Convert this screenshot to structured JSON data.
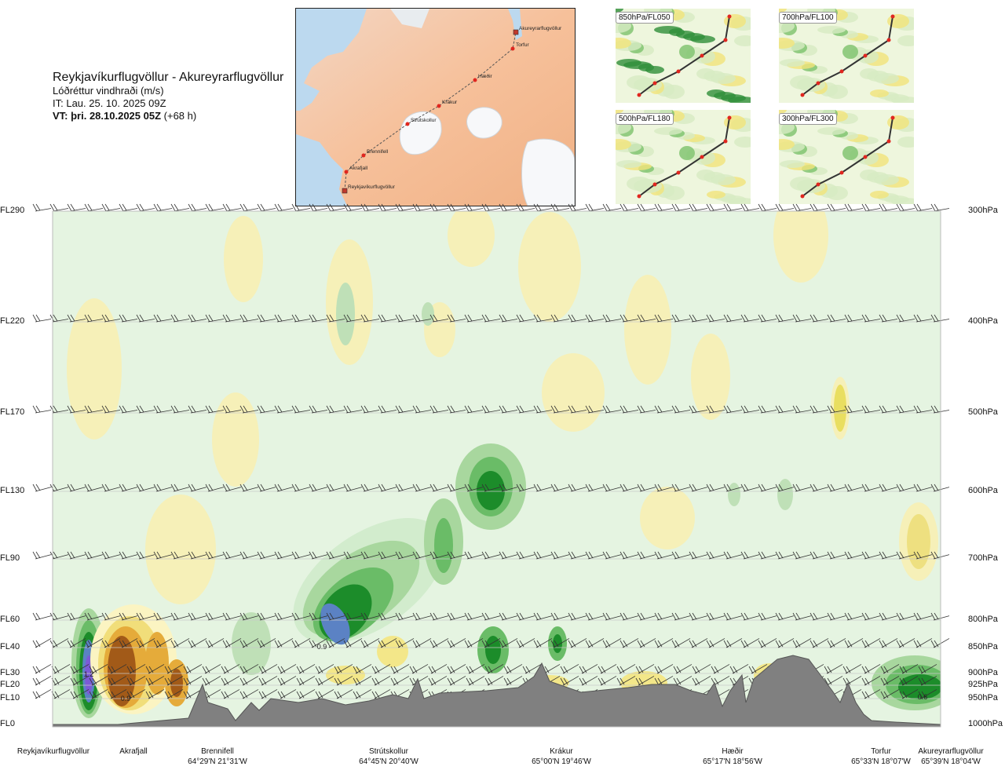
{
  "header": {
    "title": "Reykjavíkurflugvöllur - Akureyrarflugvöllur",
    "subtitle": "Lóðréttur vindhraði (m/s)",
    "it_line": "IT: Lau. 25. 10. 2025 09Z",
    "vt_bold": "VT: þri. 28.10.2025 05Z",
    "vt_offset": "(+68 h)"
  },
  "map": {
    "stations": [
      {
        "name": "Akureyrarflugvöllur"
      },
      {
        "name": "Torfur"
      },
      {
        "name": "Hæðir"
      },
      {
        "name": "Krákur"
      },
      {
        "name": "Strútskollur"
      },
      {
        "name": "Brennifell"
      },
      {
        "name": "Akrafjall"
      },
      {
        "name": "Reykjavíkurflugvöllur"
      }
    ]
  },
  "thumbnails": [
    {
      "label": "850hPa/FL050"
    },
    {
      "label": "700hPa/FL100"
    },
    {
      "label": "500hPa/FL180"
    },
    {
      "label": "300hPa/FL300"
    }
  ],
  "chart_data": {
    "type": "heatmap",
    "title": "Reykjavíkurflugvöllur - Akureyrarflugvöllur",
    "quantity": "Lóðréttur vindhraði (m/s)",
    "y_levels": [
      {
        "fl": "FL290",
        "hpa": "300hPa"
      },
      {
        "fl": "FL220",
        "hpa": "400hPa"
      },
      {
        "fl": "FL170",
        "hpa": "500hPa"
      },
      {
        "fl": "FL130",
        "hpa": "600hPa"
      },
      {
        "fl": "FL90",
        "hpa": "700hPa"
      },
      {
        "fl": "FL60",
        "hpa": "800hPa"
      },
      {
        "fl": "FL40",
        "hpa": "850hPa"
      },
      {
        "fl": "FL30",
        "hpa": "900hPa"
      },
      {
        "fl": "FL20",
        "hpa": "925hPa"
      },
      {
        "fl": "FL10",
        "hpa": "950hPa"
      },
      {
        "fl": "FL0",
        "hpa": "1000hPa"
      }
    ],
    "x_locations": [
      {
        "name": "Reykjavíkurflugvöllur",
        "coord": ""
      },
      {
        "name": "Akrafjall",
        "coord": ""
      },
      {
        "name": "Brennifell",
        "coord": "64°29'N 21°31'W"
      },
      {
        "name": "Strútskollur",
        "coord": "64°45'N 20°40'W"
      },
      {
        "name": "Krákur",
        "coord": "65°00'N 19°46'W"
      },
      {
        "name": "Hæðir",
        "coord": "65°17'N 18°56'W"
      },
      {
        "name": "Torfur",
        "coord": "65°33'N 18°07'W"
      },
      {
        "name": "Akureyrarflugvöllur",
        "coord": "65°39'N 18°04'W"
      }
    ],
    "annotations": [
      "1.2",
      "0.9",
      "0.9",
      "0.6"
    ],
    "colors": {
      "sink_light": "#fbf4c2",
      "sink_mid": "#f1de7a",
      "sink_orange": "#e5ab3a",
      "sink_brown": "#a25a18",
      "lift_pale": "#d2eccd",
      "lift_light": "#a8d79e",
      "lift_mid": "#6abc67",
      "lift_dark": "#1c8c2a",
      "lift_blue": "#5b82c4",
      "lift_purple": "#7c5ad6",
      "terrain": "#808080"
    }
  }
}
